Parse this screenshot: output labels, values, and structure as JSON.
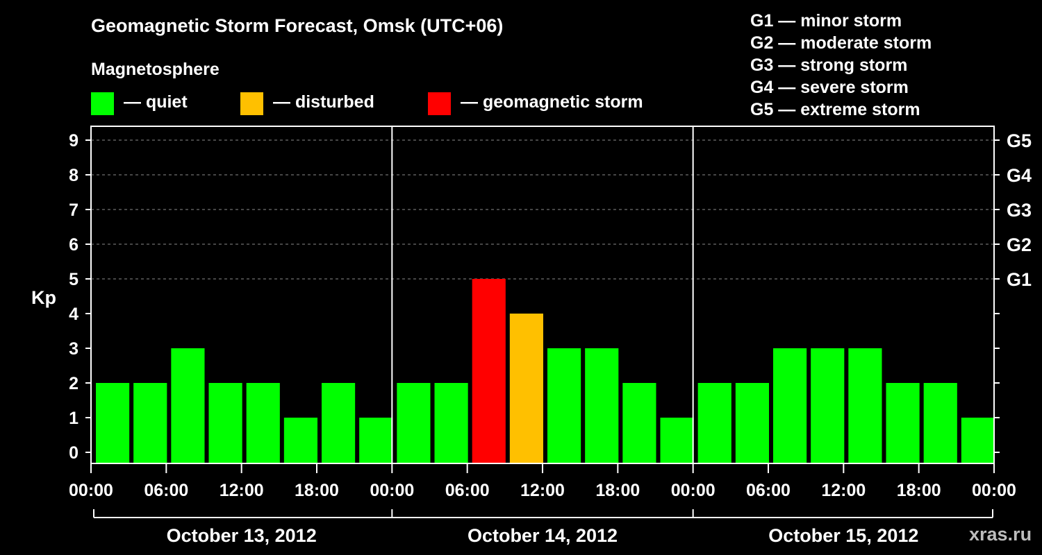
{
  "header": {
    "title": "Geomagnetic Storm Forecast, Omsk (UTC+06)",
    "magnetosphere_label": "Magnetosphere"
  },
  "legend": [
    {
      "label": "— quiet",
      "color": "#00ff00"
    },
    {
      "label": "— disturbed",
      "color": "#ffc000"
    },
    {
      "label": "— geomagnetic storm",
      "color": "#ff0000"
    }
  ],
  "g_scale": [
    "G1 — minor storm",
    "G2 — moderate storm",
    "G3 — strong storm",
    "G4 — severe storm",
    "G5 — extreme storm"
  ],
  "watermark": "xras.ru",
  "chart_data": {
    "type": "bar",
    "title": "Geomagnetic Storm Forecast, Omsk (UTC+06)",
    "ylabel": "Kp",
    "ylim": [
      0,
      9
    ],
    "yticks": [
      "0",
      "1",
      "2",
      "3",
      "4",
      "5",
      "6",
      "7",
      "8",
      "9"
    ],
    "right_ticks": [
      {
        "kp": 5,
        "label": "G1"
      },
      {
        "kp": 6,
        "label": "G2"
      },
      {
        "kp": 7,
        "label": "G3"
      },
      {
        "kp": 8,
        "label": "G4"
      },
      {
        "kp": 9,
        "label": "G5"
      }
    ],
    "xtick_labels": [
      "00:00",
      "06:00",
      "12:00",
      "18:00",
      "00:00",
      "06:00",
      "12:00",
      "18:00",
      "00:00",
      "06:00",
      "12:00",
      "18:00",
      "00:00"
    ],
    "days": [
      "October 13, 2012",
      "October 14, 2012",
      "October 15, 2012"
    ],
    "interval_hours": 3,
    "values": [
      2,
      2,
      3,
      2,
      2,
      1,
      2,
      1,
      2,
      2,
      5,
      4,
      3,
      3,
      2,
      1,
      2,
      2,
      3,
      3,
      3,
      2,
      2,
      1
    ],
    "thresholds": {
      "disturbed": 4,
      "storm": 5
    },
    "colors": {
      "quiet": "#00ff00",
      "disturbed": "#ffc000",
      "storm": "#ff0000",
      "grid": "#8c8c8c",
      "axis": "#ffffff"
    }
  }
}
